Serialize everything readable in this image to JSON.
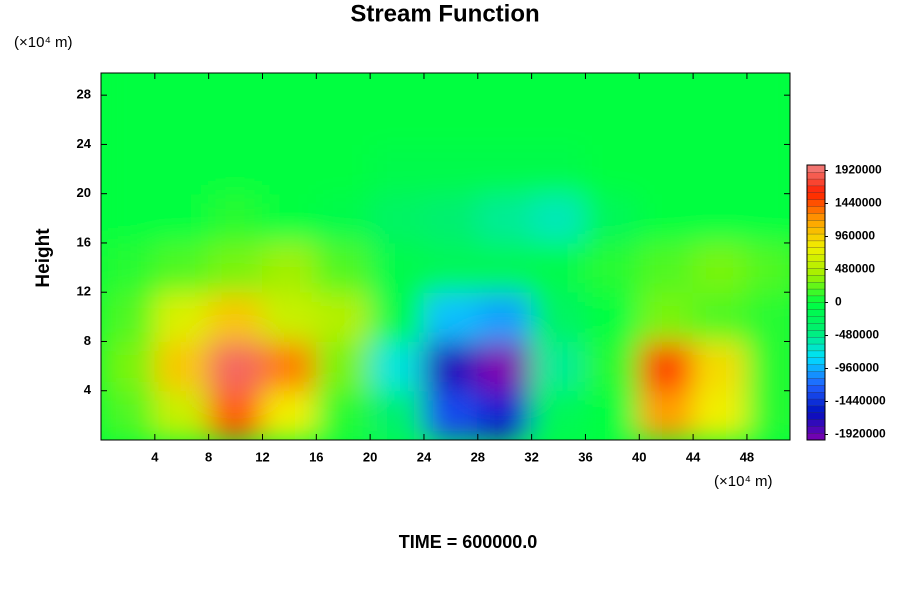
{
  "chart_data": {
    "type": "contour",
    "title": "Stream Function",
    "ylabel": "Height",
    "y_unit": "(×10⁴ m)",
    "x_unit": "(×10⁴ m)",
    "footer": "TIME = 600000.0",
    "xlim": [
      0,
      51.2
    ],
    "ylim": [
      0,
      29.8
    ],
    "xticks": [
      4,
      8,
      12,
      16,
      20,
      24,
      28,
      32,
      36,
      40,
      44,
      48
    ],
    "yticks": [
      4,
      8,
      12,
      16,
      20,
      24,
      28
    ],
    "x": [
      2,
      6,
      10,
      14,
      18,
      22,
      26,
      30,
      34,
      38,
      42,
      46,
      50
    ],
    "y": [
      2,
      6,
      10,
      14,
      18,
      22,
      26,
      30
    ],
    "z": [
      [
        200000,
        600000,
        1400000,
        800000,
        100000,
        -400000,
        -1300000,
        -1500000,
        -200000,
        0,
        1200000,
        800000,
        100000
      ],
      [
        300000,
        1000000,
        1900000,
        1300000,
        300000,
        -700000,
        -1700000,
        -2000000,
        -500000,
        100000,
        1500000,
        900000,
        100000
      ],
      [
        200000,
        700000,
        1000000,
        600000,
        500000,
        -100000,
        -900000,
        -1000000,
        -300000,
        0,
        300000,
        200000,
        100000
      ],
      [
        100000,
        200000,
        300000,
        400000,
        200000,
        -100000,
        -200000,
        -200000,
        -100000,
        100000,
        200000,
        300000,
        200000
      ],
      [
        0,
        0,
        100000,
        0,
        -100000,
        -300000,
        -400000,
        -500000,
        -600000,
        -200000,
        0,
        0,
        0
      ],
      [
        0,
        0,
        0,
        0,
        0,
        -100000,
        -100000,
        -100000,
        -100000,
        0,
        0,
        0,
        0
      ],
      [
        0,
        0,
        0,
        0,
        0,
        0,
        0,
        0,
        0,
        0,
        0,
        0,
        0
      ],
      [
        0,
        0,
        0,
        0,
        0,
        0,
        0,
        0,
        0,
        0,
        0,
        0,
        0
      ]
    ],
    "zlim": [
      -2000000,
      2000000
    ],
    "zticks": [
      -1920000,
      -1440000,
      -960000,
      -480000,
      0,
      480000,
      960000,
      1440000,
      1920000
    ],
    "colormap": [
      "#8000b0",
      "#0010c0",
      "#2060ff",
      "#00e0ff",
      "#00f070",
      "#00ff40",
      "#a0f000",
      "#f0f000",
      "#ffa000",
      "#ff2000",
      "#f08080"
    ]
  }
}
